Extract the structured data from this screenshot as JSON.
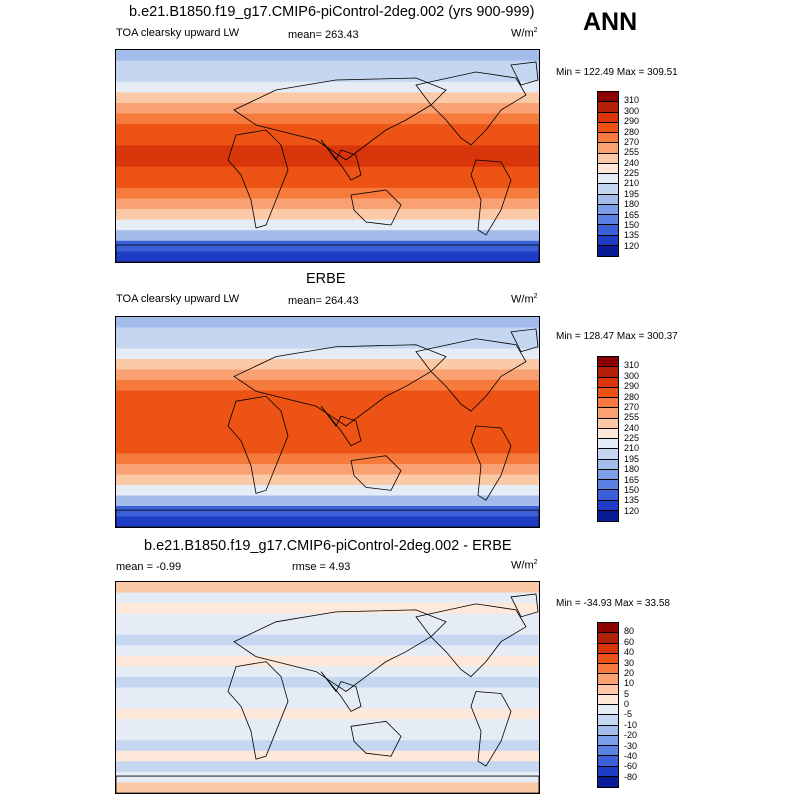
{
  "season": "ANN",
  "units": "W/m",
  "units_exp": "2",
  "panels": [
    {
      "id": "model",
      "header": "b.e21.B1850.f19_g17.CMIP6-piControl-2deg.002 (yrs 900-999)",
      "left": "TOA clearsky upward LW",
      "mid": "mean= 263.43",
      "minmax": "Min = 122.49 Max = 309.51"
    },
    {
      "id": "obs",
      "header": "ERBE",
      "left": "TOA clearsky upward LW",
      "mid": "mean= 264.43",
      "minmax": "Min = 128.47 Max = 300.37"
    },
    {
      "id": "diff",
      "header": "b.e21.B1850.f19_g17.CMIP6-piControl-2deg.002 - ERBE",
      "left": "mean =  -0.99",
      "mid": "rmse =   4.93",
      "minmax": "Min = -34.93 Max =  33.58"
    }
  ],
  "colorbars": {
    "abs_labels": [
      "310",
      "300",
      "290",
      "280",
      "270",
      "255",
      "240",
      "225",
      "210",
      "195",
      "180",
      "165",
      "150",
      "135",
      "120"
    ],
    "abs_colors": [
      "#8b0000",
      "#b32008",
      "#d9350a",
      "#ed5314",
      "#f57a3c",
      "#f9a173",
      "#fcc9a6",
      "#fde8da",
      "#e5ecf6",
      "#c5d6f0",
      "#a3bcec",
      "#7d9fe8",
      "#5a82e2",
      "#3a5fd6",
      "#1e3cc4",
      "#0b1a96"
    ],
    "diff_labels": [
      "80",
      "60",
      "40",
      "30",
      "20",
      "10",
      "5",
      "0",
      "-5",
      "-10",
      "-20",
      "-30",
      "-40",
      "-60",
      "-80"
    ],
    "diff_colors": [
      "#8b0000",
      "#b32008",
      "#d9350a",
      "#ed5314",
      "#f57a3c",
      "#f9a173",
      "#fcc9a6",
      "#fde8da",
      "#e5ecf6",
      "#c5d6f0",
      "#a3bcec",
      "#7d9fe8",
      "#5a82e2",
      "#3a5fd6",
      "#1e3cc4",
      "#0b1a96"
    ]
  },
  "map_colors": {
    "model": [
      "#a3bcec",
      "#c5d6f0",
      "#c5d6f0",
      "#e5ecf6",
      "#fcc9a6",
      "#f9a173",
      "#f57a3c",
      "#ed5314",
      "#ed5314",
      "#d9350a",
      "#d9350a",
      "#ed5314",
      "#ed5314",
      "#f57a3c",
      "#f9a173",
      "#fcc9a6",
      "#e5ecf6",
      "#a3bcec",
      "#3a5fd6",
      "#1e3cc4"
    ],
    "obs": [
      "#a3bcec",
      "#c5d6f0",
      "#c5d6f0",
      "#e5ecf6",
      "#fcc9a6",
      "#f9a173",
      "#f57a3c",
      "#ed5314",
      "#ed5314",
      "#ed5314",
      "#ed5314",
      "#ed5314",
      "#ed5314",
      "#f57a3c",
      "#f9a173",
      "#fcc9a6",
      "#e5ecf6",
      "#a3bcec",
      "#3a5fd6",
      "#1e3cc4"
    ],
    "diff": [
      "#fcc9a6",
      "#e5ecf6",
      "#fde8da",
      "#e5ecf6",
      "#e5ecf6",
      "#c5d6f0",
      "#e5ecf6",
      "#fde8da",
      "#e5ecf6",
      "#c5d6f0",
      "#e5ecf6",
      "#e5ecf6",
      "#fde8da",
      "#e5ecf6",
      "#e5ecf6",
      "#c5d6f0",
      "#fde8da",
      "#c5d6f0",
      "#e5ecf6",
      "#fcc9a6"
    ]
  }
}
